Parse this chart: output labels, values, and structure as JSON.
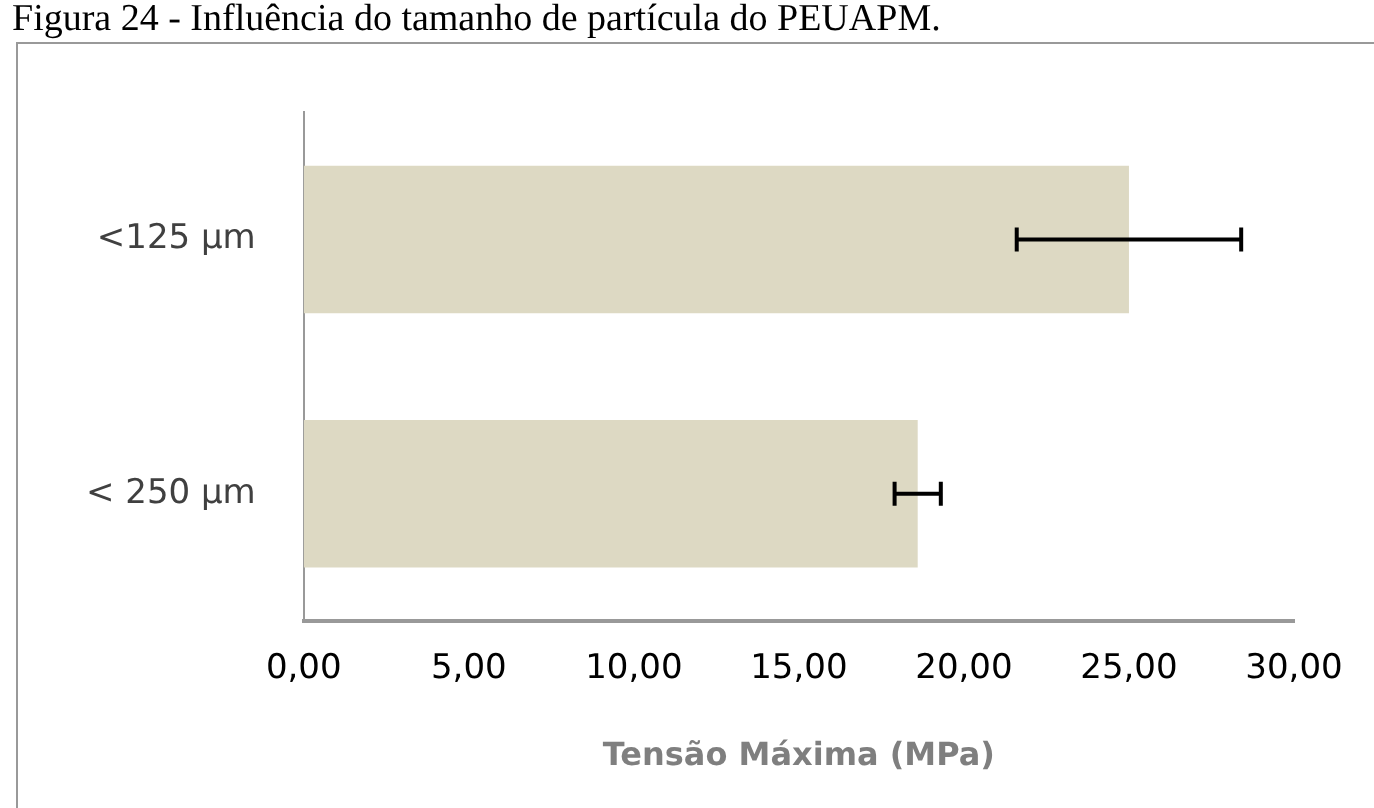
{
  "chart_data": {
    "type": "bar",
    "orientation": "horizontal",
    "title": "Figura 24 - Influência do tamanho de partícula do PEUAPM.",
    "xlabel": "Tensão Máxima (MPa)",
    "categories": [
      "<125 µm",
      "< 250 µm"
    ],
    "values": [
      25.0,
      18.6
    ],
    "errors": [
      3.4,
      0.7
    ],
    "color": "#ddd9c3",
    "xlim": [
      0,
      30
    ],
    "xticks": [
      {
        "value": 0,
        "label": "0,00"
      },
      {
        "value": 5,
        "label": "5,00"
      },
      {
        "value": 10,
        "label": "10,00"
      },
      {
        "value": 15,
        "label": "15,00"
      },
      {
        "value": 20,
        "label": "20,00"
      },
      {
        "value": 25,
        "label": "25,00"
      },
      {
        "value": 30,
        "label": "30,00"
      }
    ],
    "grid": false,
    "legend": false
  }
}
